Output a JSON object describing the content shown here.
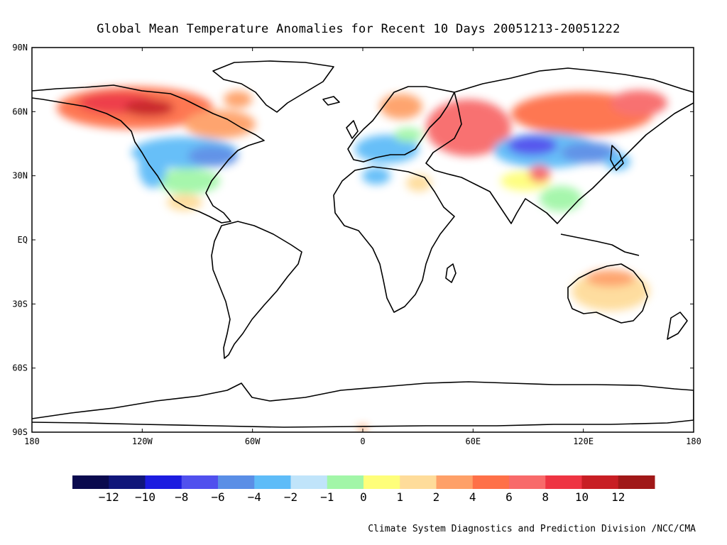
{
  "title": "Global Mean Temperature Anomalies for Recent 10 Days  20051213-20051222",
  "credit": "Climate System Diagnostics and Prediction Division /NCC/CMA",
  "lat_labels": [
    "90N",
    "60N",
    "30N",
    "EQ",
    "30S",
    "60S",
    "90S"
  ],
  "lon_labels": [
    "180",
    "120W",
    "60W",
    "0",
    "60E",
    "120E",
    "180"
  ],
  "colorbar": {
    "colors": [
      "#0a0a4e",
      "#10167a",
      "#1c1ce0",
      "#5050ee",
      "#5a8ee6",
      "#5ebcf8",
      "#c0e4fa",
      "#a2f6a8",
      "#fefe7a",
      "#fedc9a",
      "#fea068",
      "#fe7048",
      "#f86a6a",
      "#ee3442",
      "#c81e24",
      "#a01818"
    ],
    "labels": [
      "-12",
      "-10",
      "-8",
      "-6",
      "-4",
      "-2",
      "-1",
      "0",
      "1",
      "2",
      "4",
      "6",
      "8",
      "10",
      "12"
    ]
  }
}
